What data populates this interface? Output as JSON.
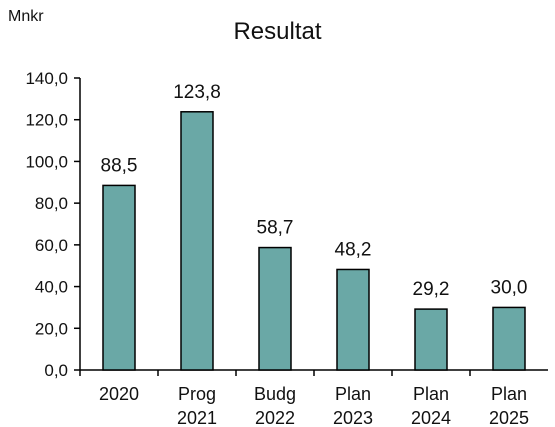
{
  "header": {
    "unit_label": "Mnkr",
    "title": "Resultat"
  },
  "chart_data": {
    "type": "bar",
    "title": "Resultat",
    "ylabel": "Mnkr",
    "xlabel": "",
    "categories": [
      [
        "2020"
      ],
      [
        "Prog",
        "2021"
      ],
      [
        "Budg",
        "2022"
      ],
      [
        "Plan",
        "2023"
      ],
      [
        "Plan",
        "2024"
      ],
      [
        "Plan",
        "2025"
      ]
    ],
    "values": [
      88.5,
      123.8,
      58.7,
      48.2,
      29.2,
      30.0
    ],
    "value_labels": [
      "88,5",
      "123,8",
      "58,7",
      "48,2",
      "29,2",
      "30,0"
    ],
    "yticks": [
      "0,0",
      "20,0",
      "40,0",
      "60,0",
      "80,0",
      "100,0",
      "120,0",
      "140,0"
    ],
    "ylim": [
      0,
      140
    ],
    "grid": false,
    "bar_color": "#6aa8a6"
  }
}
